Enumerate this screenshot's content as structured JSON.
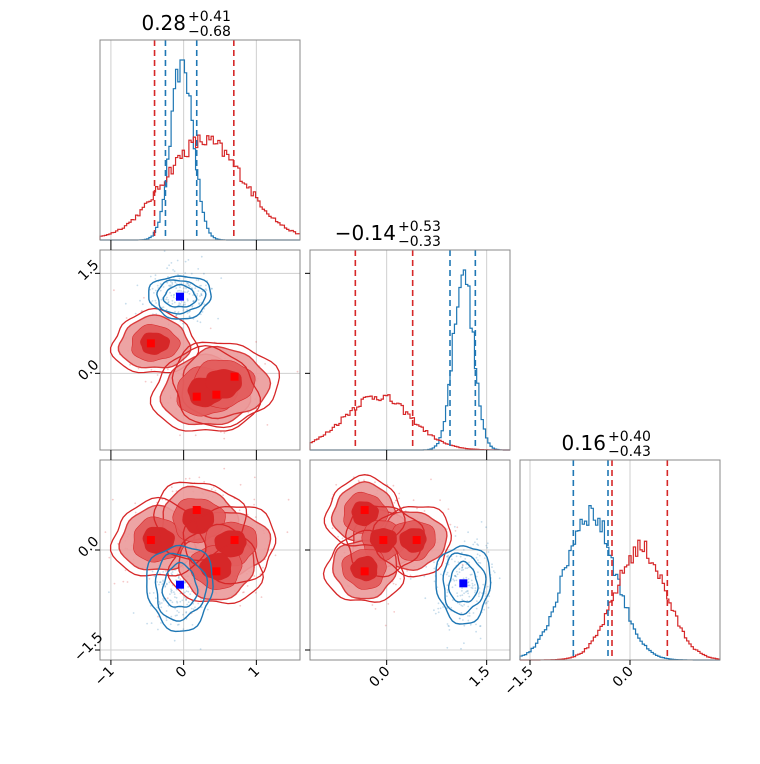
{
  "colors": {
    "blue": "#1f77b4",
    "red": "#d62728",
    "red_light": "#ec9b9b",
    "red_mid": "#e35c5c",
    "red_dark": "#d62728",
    "grid": "#cfcfcf",
    "frame": "#888888",
    "marker_blue": "#0000ff",
    "marker_red": "#ff0000"
  },
  "chart_data": {
    "type": "corner",
    "parameters": 3,
    "titles": [
      {
        "main": "0.28",
        "plus": "+0.41",
        "minus": "−0.68"
      },
      {
        "main": "−0.14",
        "plus": "+0.53",
        "minus": "−0.33"
      },
      {
        "main": "0.16",
        "plus": "+0.40",
        "minus": "−0.43"
      }
    ],
    "ticks": {
      "x0": {
        "values": [
          -1,
          0,
          1
        ],
        "labels": [
          "−1",
          "0",
          "1"
        ]
      },
      "x1": {
        "values": [
          0.0,
          1.5
        ],
        "labels": [
          "0.0",
          "1.5"
        ]
      },
      "x2": {
        "values": [
          -1.5,
          0.0
        ],
        "labels": [
          "−1.5",
          "0.0"
        ]
      },
      "y1": {
        "values": [
          1.5,
          0.0
        ],
        "labels": [
          "1.5",
          "0.0"
        ]
      },
      "y2": {
        "values": [
          0.0,
          -1.5
        ],
        "labels": [
          "0.0",
          "−1.5"
        ]
      }
    },
    "ranges": {
      "p0": [
        -1.15,
        1.6
      ],
      "p1": [
        -1.15,
        1.85
      ],
      "p2": [
        -1.65,
        1.35
      ]
    },
    "grid": true,
    "series": [
      {
        "color": "blue",
        "p0_hist": {
          "center": -0.02,
          "width": 0.15,
          "peak": 1.0
        },
        "p1_hist": {
          "center": 1.15,
          "width": 0.15,
          "peak": 1.0
        },
        "p2_hist": {
          "center": -0.6,
          "width": 0.38,
          "peak": 0.82
        },
        "quantiles": {
          "p0": [
            -0.25,
            0.18
          ],
          "p1": [
            0.95,
            1.33
          ],
          "p2": [
            -0.85,
            -0.33
          ]
        },
        "markers": {
          "p0_p1": [
            -0.05,
            1.15
          ],
          "p0_p2": [
            -0.05,
            -0.52
          ],
          "p1_p2": [
            1.15,
            -0.5
          ]
        }
      },
      {
        "color": "red",
        "p0_hist": {
          "center": 0.28,
          "width": 0.55,
          "peak": 0.55
        },
        "p1_hist": {
          "center": -0.14,
          "width": 0.5,
          "peak": 0.3
        },
        "p2_hist": {
          "center": 0.16,
          "width": 0.38,
          "peak": 0.62
        },
        "quantiles": {
          "p0": [
            -0.4,
            0.69
          ],
          "p1": [
            -0.47,
            0.39
          ],
          "p2": [
            -0.27,
            0.56
          ]
        },
        "markers_p0_p1": [
          [
            -0.45,
            0.45
          ],
          [
            0.18,
            -0.35
          ],
          [
            0.45,
            -0.32
          ],
          [
            0.7,
            -0.05
          ]
        ],
        "markers_p0_p2": [
          [
            -0.45,
            0.15
          ],
          [
            0.18,
            0.6
          ],
          [
            0.7,
            0.15
          ],
          [
            0.45,
            -0.32
          ]
        ],
        "markers_p1_p2": [
          [
            -0.33,
            0.6
          ],
          [
            -0.05,
            0.15
          ],
          [
            0.45,
            0.15
          ],
          [
            -0.33,
            -0.32
          ]
        ]
      }
    ]
  }
}
